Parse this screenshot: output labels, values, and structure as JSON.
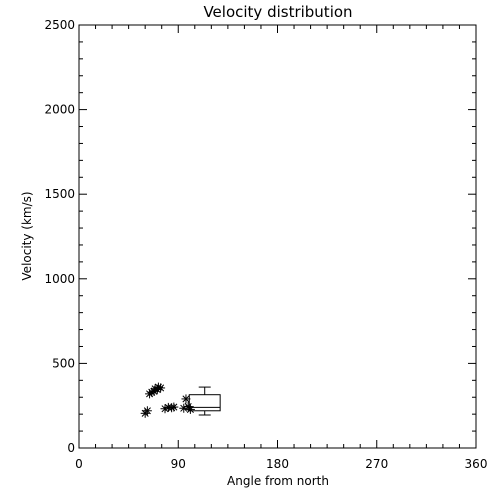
{
  "chart_data": {
    "type": "scatter",
    "title": "Velocity distribution",
    "xlabel": "Angle from north",
    "ylabel": "Velocity (km/s)",
    "xlim": [
      0,
      360
    ],
    "ylim": [
      0,
      2500
    ],
    "xticks": [
      0,
      90,
      180,
      270,
      360
    ],
    "yticks": [
      0,
      500,
      1000,
      1500,
      2000,
      2500
    ],
    "grid": false,
    "marker": "asterisk",
    "points": [
      {
        "x": 60,
        "y": 205
      },
      {
        "x": 62,
        "y": 220
      },
      {
        "x": 64,
        "y": 320
      },
      {
        "x": 66,
        "y": 330
      },
      {
        "x": 68,
        "y": 335
      },
      {
        "x": 69,
        "y": 350
      },
      {
        "x": 71,
        "y": 345
      },
      {
        "x": 72,
        "y": 360
      },
      {
        "x": 74,
        "y": 355
      },
      {
        "x": 78,
        "y": 232
      },
      {
        "x": 81,
        "y": 240
      },
      {
        "x": 84,
        "y": 238
      },
      {
        "x": 86,
        "y": 242
      },
      {
        "x": 95,
        "y": 235
      },
      {
        "x": 97,
        "y": 290
      },
      {
        "x": 99,
        "y": 245
      },
      {
        "x": 101,
        "y": 228
      }
    ],
    "boxplot": {
      "x_start": 100,
      "x_end": 128,
      "whisker_low": 195,
      "q1": 220,
      "median": 240,
      "q3": 315,
      "whisker_high": 360
    }
  }
}
